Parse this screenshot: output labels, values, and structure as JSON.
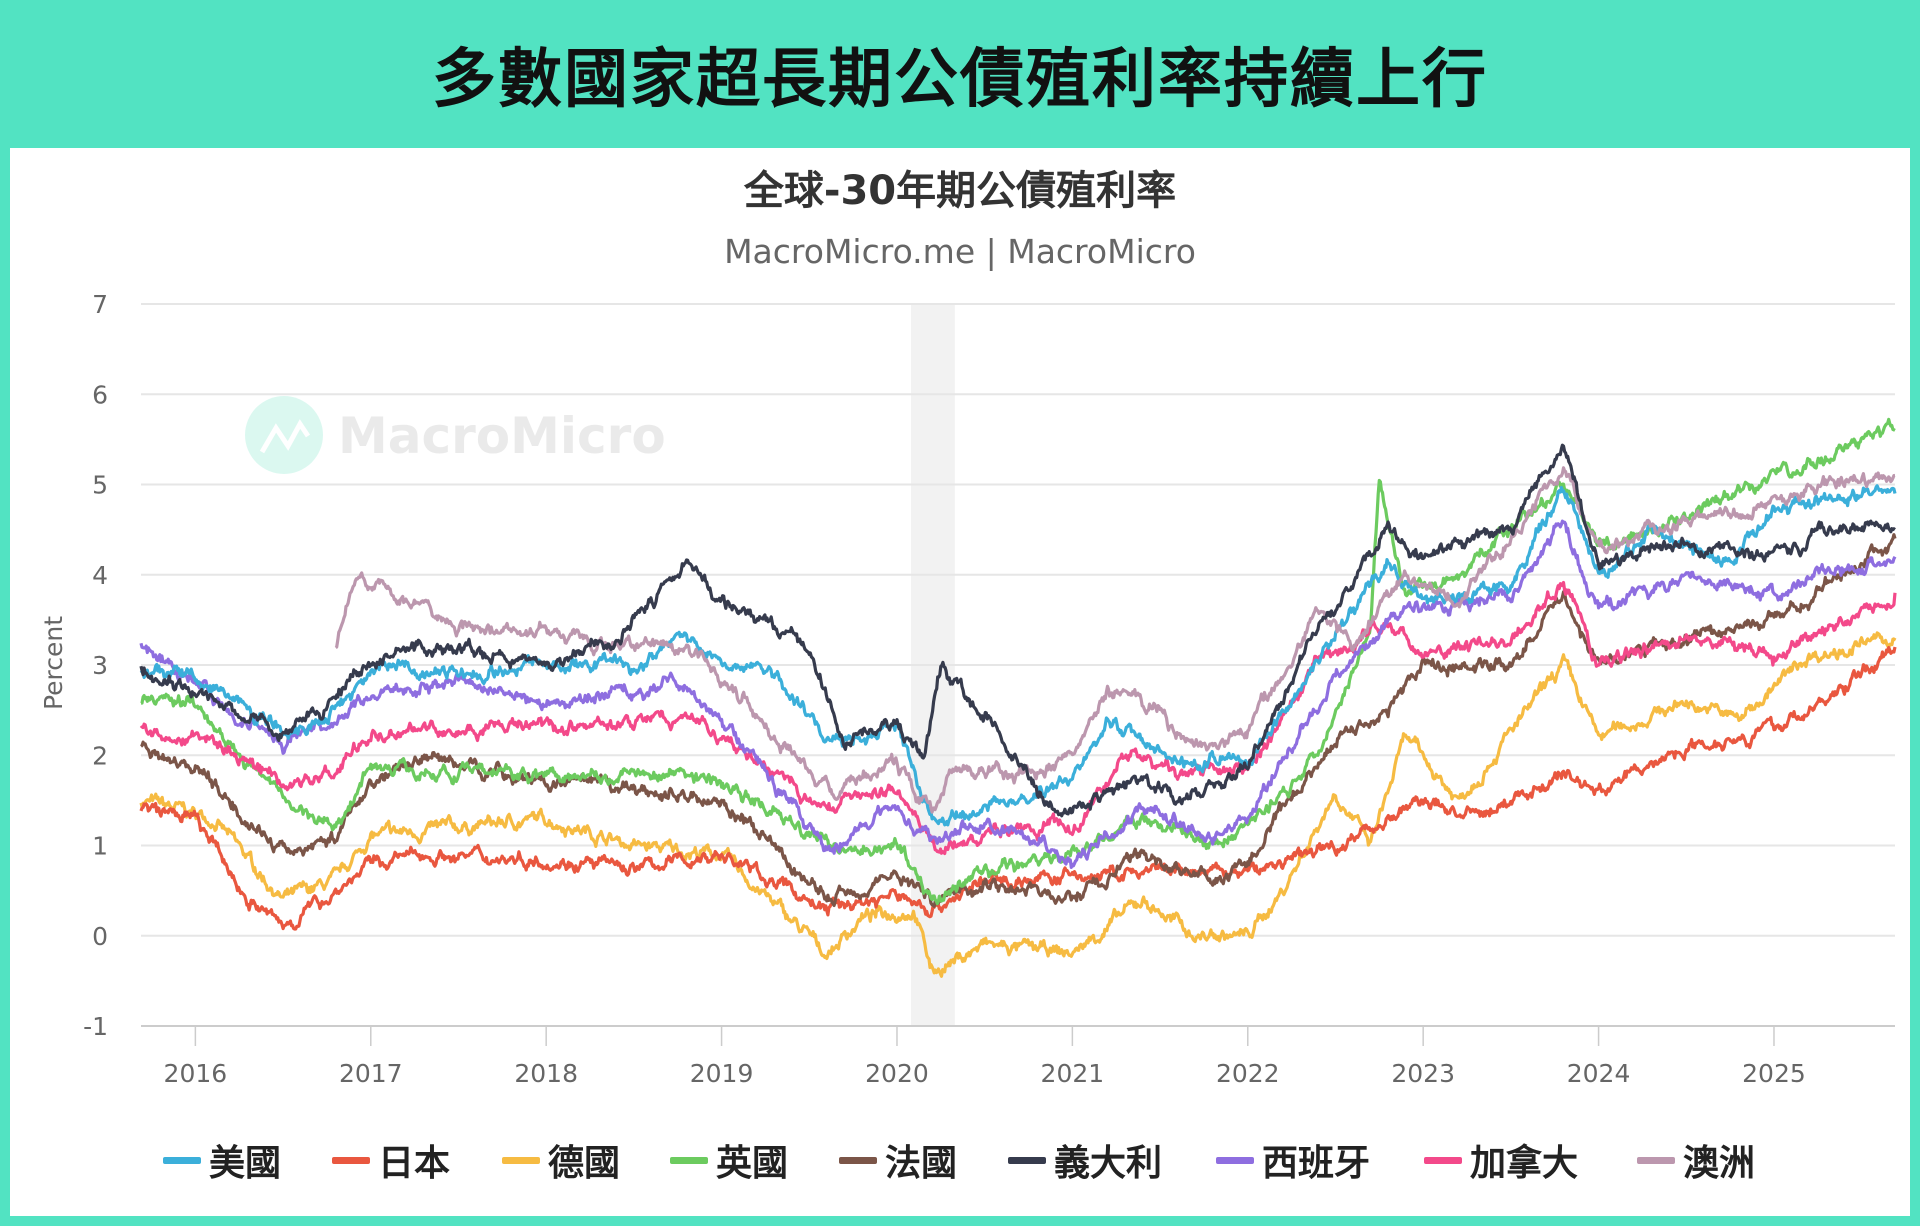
{
  "headline": "多數國家超長期公債殖利率持續上行",
  "watermark": "MacroMicro",
  "chart_data": {
    "type": "line",
    "title": "全球-30年期公債殖利率",
    "subtitle": "MacroMicro.me | MacroMicro",
    "ylabel": "Percent",
    "xlabel": "",
    "ylim": [
      -1,
      7
    ],
    "yticks": [
      -1,
      0,
      1,
      2,
      3,
      4,
      5,
      6,
      7
    ],
    "xlim": [
      2015.69,
      2025.69
    ],
    "xticks": [
      "2016",
      "2017",
      "2018",
      "2019",
      "2020",
      "2021",
      "2022",
      "2023",
      "2024",
      "2025"
    ],
    "grid": true,
    "legend": "bottom",
    "recession_band": [
      2020.08,
      2020.33
    ],
    "series": [
      {
        "name": "美國",
        "color": "#3bafda",
        "points": [
          [
            2015.69,
            2.95
          ],
          [
            2016.0,
            2.9
          ],
          [
            2016.5,
            2.3
          ],
          [
            2016.8,
            2.5
          ],
          [
            2017.0,
            3.0
          ],
          [
            2017.5,
            2.9
          ],
          [
            2018.0,
            3.0
          ],
          [
            2018.5,
            3.0
          ],
          [
            2018.8,
            3.35
          ],
          [
            2019.0,
            3.0
          ],
          [
            2019.3,
            2.9
          ],
          [
            2019.6,
            2.1
          ],
          [
            2020.0,
            2.3
          ],
          [
            2020.2,
            1.3
          ],
          [
            2020.5,
            1.4
          ],
          [
            2020.8,
            1.6
          ],
          [
            2021.0,
            1.7
          ],
          [
            2021.2,
            2.4
          ],
          [
            2021.6,
            1.9
          ],
          [
            2022.0,
            2.0
          ],
          [
            2022.4,
            3.0
          ],
          [
            2022.8,
            4.2
          ],
          [
            2023.0,
            3.7
          ],
          [
            2023.5,
            3.9
          ],
          [
            2023.8,
            5.0
          ],
          [
            2024.0,
            4.0
          ],
          [
            2024.3,
            4.5
          ],
          [
            2024.7,
            4.1
          ],
          [
            2025.0,
            4.7
          ],
          [
            2025.3,
            4.8
          ],
          [
            2025.69,
            4.9
          ]
        ]
      },
      {
        "name": "日本",
        "color": "#e9573f",
        "points": [
          [
            2015.69,
            1.4
          ],
          [
            2016.0,
            1.3
          ],
          [
            2016.3,
            0.4
          ],
          [
            2016.5,
            0.1
          ],
          [
            2016.8,
            0.5
          ],
          [
            2017.0,
            0.8
          ],
          [
            2017.3,
            0.9
          ],
          [
            2018.0,
            0.85
          ],
          [
            2018.5,
            0.75
          ],
          [
            2019.0,
            0.9
          ],
          [
            2019.6,
            0.3
          ],
          [
            2020.0,
            0.45
          ],
          [
            2020.2,
            0.3
          ],
          [
            2020.5,
            0.6
          ],
          [
            2021.0,
            0.65
          ],
          [
            2021.5,
            0.7
          ],
          [
            2022.0,
            0.7
          ],
          [
            2022.5,
            1.0
          ],
          [
            2023.0,
            1.5
          ],
          [
            2023.3,
            1.3
          ],
          [
            2023.8,
            1.8
          ],
          [
            2024.0,
            1.6
          ],
          [
            2024.5,
            2.1
          ],
          [
            2025.0,
            2.3
          ],
          [
            2025.3,
            2.6
          ],
          [
            2025.69,
            3.2
          ]
        ]
      },
      {
        "name": "德國",
        "color": "#f6bb42",
        "points": [
          [
            2015.69,
            1.5
          ],
          [
            2016.1,
            1.3
          ],
          [
            2016.5,
            0.4
          ],
          [
            2016.8,
            0.6
          ],
          [
            2017.0,
            1.1
          ],
          [
            2017.5,
            1.2
          ],
          [
            2018.0,
            1.3
          ],
          [
            2018.5,
            1.0
          ],
          [
            2019.0,
            0.9
          ],
          [
            2019.6,
            -0.2
          ],
          [
            2019.8,
            0.2
          ],
          [
            2020.1,
            0.3
          ],
          [
            2020.2,
            -0.4
          ],
          [
            2020.5,
            -0.1
          ],
          [
            2021.0,
            -0.2
          ],
          [
            2021.4,
            0.4
          ],
          [
            2021.7,
            0.0
          ],
          [
            2022.0,
            0.0
          ],
          [
            2022.2,
            0.5
          ],
          [
            2022.5,
            1.6
          ],
          [
            2022.7,
            1.0
          ],
          [
            2022.9,
            2.2
          ],
          [
            2023.2,
            1.5
          ],
          [
            2023.8,
            3.0
          ],
          [
            2024.0,
            2.2
          ],
          [
            2024.5,
            2.6
          ],
          [
            2024.8,
            2.4
          ],
          [
            2025.2,
            3.1
          ],
          [
            2025.69,
            3.3
          ]
        ]
      },
      {
        "name": "英國",
        "color": "#6ccb5f",
        "points": [
          [
            2015.69,
            2.6
          ],
          [
            2016.0,
            2.6
          ],
          [
            2016.5,
            1.5
          ],
          [
            2016.8,
            1.2
          ],
          [
            2017.0,
            1.9
          ],
          [
            2017.5,
            1.8
          ],
          [
            2018.0,
            1.8
          ],
          [
            2018.8,
            1.8
          ],
          [
            2019.0,
            1.7
          ],
          [
            2019.6,
            1.0
          ],
          [
            2020.0,
            1.0
          ],
          [
            2020.2,
            0.4
          ],
          [
            2020.5,
            0.7
          ],
          [
            2021.0,
            0.9
          ],
          [
            2021.4,
            1.3
          ],
          [
            2021.8,
            1.0
          ],
          [
            2022.0,
            1.2
          ],
          [
            2022.4,
            2.0
          ],
          [
            2022.7,
            3.5
          ],
          [
            2022.75,
            5.0
          ],
          [
            2022.9,
            3.8
          ],
          [
            2023.2,
            4.0
          ],
          [
            2023.8,
            5.0
          ],
          [
            2024.0,
            4.3
          ],
          [
            2024.5,
            4.6
          ],
          [
            2025.0,
            5.1
          ],
          [
            2025.3,
            5.3
          ],
          [
            2025.69,
            5.6
          ]
        ]
      },
      {
        "name": "法國",
        "color": "#7b5548",
        "points": [
          [
            2015.69,
            2.1
          ],
          [
            2016.0,
            1.9
          ],
          [
            2016.5,
            0.9
          ],
          [
            2016.8,
            1.1
          ],
          [
            2017.0,
            1.7
          ],
          [
            2017.3,
            2.0
          ],
          [
            2018.0,
            1.7
          ],
          [
            2018.6,
            1.6
          ],
          [
            2019.0,
            1.5
          ],
          [
            2019.6,
            0.4
          ],
          [
            2020.0,
            0.7
          ],
          [
            2020.2,
            0.4
          ],
          [
            2020.5,
            0.6
          ],
          [
            2021.0,
            0.4
          ],
          [
            2021.4,
            0.9
          ],
          [
            2021.8,
            0.6
          ],
          [
            2022.0,
            0.8
          ],
          [
            2022.5,
            2.2
          ],
          [
            2022.8,
            2.5
          ],
          [
            2023.0,
            3.0
          ],
          [
            2023.5,
            3.0
          ],
          [
            2023.8,
            3.8
          ],
          [
            2024.0,
            3.0
          ],
          [
            2024.5,
            3.3
          ],
          [
            2025.0,
            3.5
          ],
          [
            2025.4,
            4.0
          ],
          [
            2025.69,
            4.4
          ]
        ]
      },
      {
        "name": "義大利",
        "color": "#363b4d",
        "points": [
          [
            2015.69,
            3.0
          ],
          [
            2016.0,
            2.7
          ],
          [
            2016.5,
            2.2
          ],
          [
            2016.8,
            2.7
          ],
          [
            2017.0,
            3.1
          ],
          [
            2017.5,
            3.2
          ],
          [
            2018.0,
            3.0
          ],
          [
            2018.4,
            3.3
          ],
          [
            2018.8,
            4.1
          ],
          [
            2019.0,
            3.7
          ],
          [
            2019.5,
            3.2
          ],
          [
            2019.7,
            2.1
          ],
          [
            2020.0,
            2.4
          ],
          [
            2020.15,
            1.9
          ],
          [
            2020.25,
            3.0
          ],
          [
            2020.6,
            2.2
          ],
          [
            2020.8,
            1.6
          ],
          [
            2021.0,
            1.4
          ],
          [
            2021.4,
            1.8
          ],
          [
            2021.6,
            1.5
          ],
          [
            2022.0,
            1.9
          ],
          [
            2022.4,
            3.4
          ],
          [
            2022.8,
            4.5
          ],
          [
            2023.0,
            4.2
          ],
          [
            2023.5,
            4.5
          ],
          [
            2023.8,
            5.4
          ],
          [
            2024.0,
            4.1
          ],
          [
            2024.5,
            4.4
          ],
          [
            2025.0,
            4.2
          ],
          [
            2025.3,
            4.5
          ],
          [
            2025.69,
            4.5
          ]
        ]
      },
      {
        "name": "西班牙",
        "color": "#8e6ee0",
        "points": [
          [
            2015.69,
            3.2
          ],
          [
            2016.0,
            2.8
          ],
          [
            2016.5,
            2.1
          ],
          [
            2016.8,
            2.4
          ],
          [
            2017.0,
            2.7
          ],
          [
            2017.5,
            2.8
          ],
          [
            2018.0,
            2.6
          ],
          [
            2018.8,
            2.8
          ],
          [
            2019.0,
            2.4
          ],
          [
            2019.6,
            1.0
          ],
          [
            2020.0,
            1.4
          ],
          [
            2020.2,
            1.0
          ],
          [
            2020.5,
            1.3
          ],
          [
            2021.0,
            0.8
          ],
          [
            2021.4,
            1.4
          ],
          [
            2021.8,
            1.1
          ],
          [
            2022.0,
            1.3
          ],
          [
            2022.5,
            2.9
          ],
          [
            2022.8,
            3.5
          ],
          [
            2023.0,
            3.6
          ],
          [
            2023.5,
            3.8
          ],
          [
            2023.8,
            4.6
          ],
          [
            2024.0,
            3.6
          ],
          [
            2024.5,
            4.0
          ],
          [
            2025.0,
            3.8
          ],
          [
            2025.4,
            4.1
          ],
          [
            2025.69,
            4.2
          ]
        ]
      },
      {
        "name": "加拿大",
        "color": "#f3498a",
        "points": [
          [
            2015.69,
            2.3
          ],
          [
            2016.0,
            2.2
          ],
          [
            2016.5,
            1.7
          ],
          [
            2016.8,
            1.8
          ],
          [
            2017.0,
            2.3
          ],
          [
            2017.5,
            2.3
          ],
          [
            2018.0,
            2.3
          ],
          [
            2018.8,
            2.4
          ],
          [
            2019.0,
            2.2
          ],
          [
            2019.6,
            1.4
          ],
          [
            2020.0,
            1.7
          ],
          [
            2020.2,
            1.0
          ],
          [
            2020.5,
            1.1
          ],
          [
            2021.0,
            1.2
          ],
          [
            2021.3,
            2.0
          ],
          [
            2021.6,
            1.8
          ],
          [
            2022.0,
            1.8
          ],
          [
            2022.4,
            3.0
          ],
          [
            2022.8,
            3.5
          ],
          [
            2023.0,
            3.1
          ],
          [
            2023.5,
            3.3
          ],
          [
            2023.8,
            3.9
          ],
          [
            2024.0,
            3.0
          ],
          [
            2024.5,
            3.3
          ],
          [
            2025.0,
            3.1
          ],
          [
            2025.3,
            3.4
          ],
          [
            2025.69,
            3.8
          ]
        ]
      },
      {
        "name": "澳洲",
        "color": "#bc97ae",
        "points": [
          [
            2016.8,
            3.2
          ],
          [
            2016.9,
            3.9
          ],
          [
            2017.2,
            3.8
          ],
          [
            2017.5,
            3.4
          ],
          [
            2018.0,
            3.4
          ],
          [
            2018.5,
            3.2
          ],
          [
            2018.8,
            3.2
          ],
          [
            2019.0,
            2.9
          ],
          [
            2019.6,
            1.6
          ],
          [
            2020.0,
            1.9
          ],
          [
            2020.2,
            1.3
          ],
          [
            2020.3,
            1.9
          ],
          [
            2020.5,
            1.8
          ],
          [
            2020.8,
            1.8
          ],
          [
            2021.0,
            2.0
          ],
          [
            2021.2,
            2.7
          ],
          [
            2021.5,
            2.5
          ],
          [
            2021.7,
            2.0
          ],
          [
            2022.0,
            2.3
          ],
          [
            2022.4,
            3.6
          ],
          [
            2022.6,
            3.2
          ],
          [
            2022.9,
            4.0
          ],
          [
            2023.2,
            3.7
          ],
          [
            2023.8,
            5.2
          ],
          [
            2024.0,
            4.3
          ],
          [
            2024.5,
            4.6
          ],
          [
            2025.0,
            4.8
          ],
          [
            2025.3,
            5.0
          ],
          [
            2025.69,
            5.1
          ]
        ]
      }
    ]
  }
}
